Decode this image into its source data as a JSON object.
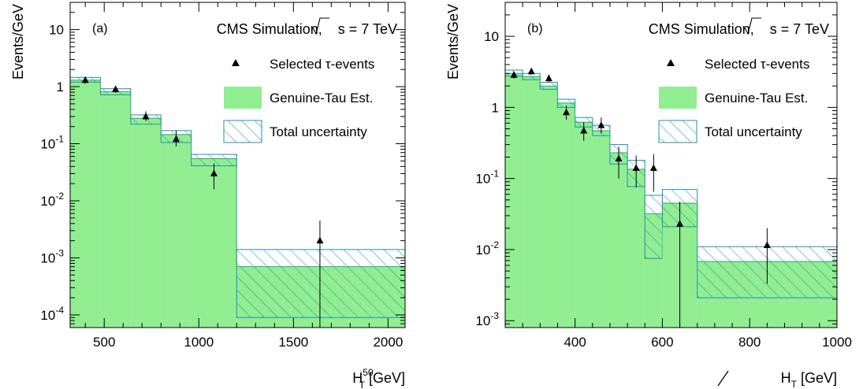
{
  "chart_data": [
    {
      "type": "histogram",
      "panel_label": "(a)",
      "header": "CMS Simulation,",
      "energy_label": "s",
      "energy_value": " = 7 TeV",
      "ylabel": "Events/GeV",
      "xlabel": "H",
      "xlabel_sup": "50",
      "xlabel_sub": "T",
      "xlabel_unit": " [GeV]",
      "xlim": [
        320,
        2090
      ],
      "ylim": [
        6e-05,
        30
      ],
      "yscale": "log",
      "xticks": [
        500,
        1000,
        1500,
        2000
      ],
      "xtick_labels": [
        "500",
        "1000",
        "1500",
        "2000"
      ],
      "yticks": [
        {
          "base": "10",
          "exp": "-4",
          "value": 0.0001
        },
        {
          "base": "10",
          "exp": "-3",
          "value": 0.001
        },
        {
          "base": "10",
          "exp": "-2",
          "value": 0.01
        },
        {
          "base": "10",
          "exp": "-1",
          "value": 0.1
        },
        {
          "base": "1",
          "exp": "",
          "value": 1
        },
        {
          "base": "10",
          "exp": "",
          "value": 10
        }
      ],
      "legend": {
        "placement": "top-right",
        "items": [
          {
            "label": "Selected τ-events",
            "kind": "marker"
          },
          {
            "label": "Genuine-Tau Est.",
            "kind": "fill"
          },
          {
            "label": "Total uncertainty",
            "kind": "hatch"
          }
        ]
      },
      "bins": [
        {
          "low": 320,
          "high": 480,
          "value": 1.3,
          "err_low": 1.2,
          "err_high": 1.45
        },
        {
          "low": 480,
          "high": 640,
          "value": 0.82,
          "err_low": 0.72,
          "err_high": 0.92
        },
        {
          "low": 640,
          "high": 800,
          "value": 0.28,
          "err_low": 0.22,
          "err_high": 0.32
        },
        {
          "low": 800,
          "high": 960,
          "value": 0.145,
          "err_low": 0.105,
          "err_high": 0.17
        },
        {
          "low": 960,
          "high": 1200,
          "value": 0.055,
          "err_low": 0.041,
          "err_high": 0.065
        },
        {
          "low": 1200,
          "high": 2090,
          "value": 0.0007,
          "err_low": 9e-05,
          "err_high": 0.0014
        }
      ],
      "points": [
        {
          "x": 400,
          "y": 1.3,
          "err_low": 1.12,
          "err_high": 1.5
        },
        {
          "x": 560,
          "y": 0.9,
          "err_low": 0.78,
          "err_high": 1.02
        },
        {
          "x": 720,
          "y": 0.3,
          "err_low": 0.25,
          "err_high": 0.37
        },
        {
          "x": 880,
          "y": 0.12,
          "err_low": 0.09,
          "err_high": 0.17
        },
        {
          "x": 1080,
          "y": 0.03,
          "err_low": 0.016,
          "err_high": 0.045
        },
        {
          "x": 1640,
          "y": 0.002,
          "err_low": 6e-05,
          "err_high": 0.0045
        }
      ]
    },
    {
      "type": "histogram",
      "panel_label": "(b)",
      "header": "CMS Simulation,",
      "energy_label": "s",
      "energy_value": " = 7 TeV",
      "ylabel": "Events/GeV",
      "xlabel": "H",
      "xlabel_sup": "",
      "xlabel_sub": "T",
      "xlabel_unit": " [GeV]",
      "xlim": [
        240,
        1000
      ],
      "ylim": [
        0.0008,
        30
      ],
      "yscale": "log",
      "xticks": [
        400,
        600,
        800,
        1000
      ],
      "xtick_labels": [
        "400",
        "600",
        "800",
        "1000"
      ],
      "yticks": [
        {
          "base": "10",
          "exp": "-3",
          "value": 0.001
        },
        {
          "base": "10",
          "exp": "-2",
          "value": 0.01
        },
        {
          "base": "10",
          "exp": "-1",
          "value": 0.1
        },
        {
          "base": "1",
          "exp": "",
          "value": 1
        },
        {
          "base": "10",
          "exp": "",
          "value": 10
        }
      ],
      "legend": {
        "placement": "top-right",
        "items": [
          {
            "label": "Selected τ-events",
            "kind": "marker"
          },
          {
            "label": "Genuine-Tau Est.",
            "kind": "fill"
          },
          {
            "label": "Total uncertainty",
            "kind": "hatch"
          }
        ]
      },
      "bins": [
        {
          "low": 240,
          "high": 280,
          "value": 3.0,
          "err_low": 2.75,
          "err_high": 3.35
        },
        {
          "low": 280,
          "high": 320,
          "value": 2.7,
          "err_low": 2.45,
          "err_high": 3.0
        },
        {
          "low": 320,
          "high": 360,
          "value": 2.0,
          "err_low": 1.8,
          "err_high": 2.25
        },
        {
          "low": 360,
          "high": 400,
          "value": 1.15,
          "err_low": 1.0,
          "err_high": 1.3
        },
        {
          "low": 400,
          "high": 440,
          "value": 0.62,
          "err_low": 0.53,
          "err_high": 0.72
        },
        {
          "low": 440,
          "high": 480,
          "value": 0.47,
          "err_low": 0.4,
          "err_high": 0.56
        },
        {
          "low": 480,
          "high": 520,
          "value": 0.23,
          "err_low": 0.16,
          "err_high": 0.3
        },
        {
          "low": 520,
          "high": 560,
          "value": 0.135,
          "err_low": 0.077,
          "err_high": 0.18
        },
        {
          "low": 560,
          "high": 600,
          "value": 0.032,
          "err_low": 0.0075,
          "err_high": 0.058
        },
        {
          "low": 600,
          "high": 680,
          "value": 0.045,
          "err_low": 0.021,
          "err_high": 0.07
        },
        {
          "low": 680,
          "high": 1000,
          "value": 0.0068,
          "err_low": 0.0021,
          "err_high": 0.011
        }
      ],
      "points": [
        {
          "x": 260,
          "y": 2.85,
          "err_low": 2.55,
          "err_high": 3.2
        },
        {
          "x": 300,
          "y": 3.2,
          "err_low": 2.9,
          "err_high": 3.55
        },
        {
          "x": 340,
          "y": 2.55,
          "err_low": 2.25,
          "err_high": 2.9
        },
        {
          "x": 380,
          "y": 0.85,
          "err_low": 0.67,
          "err_high": 1.06
        },
        {
          "x": 420,
          "y": 0.47,
          "err_low": 0.34,
          "err_high": 0.62
        },
        {
          "x": 460,
          "y": 0.56,
          "err_low": 0.43,
          "err_high": 0.72
        },
        {
          "x": 500,
          "y": 0.19,
          "err_low": 0.1,
          "err_high": 0.28
        },
        {
          "x": 540,
          "y": 0.14,
          "err_low": 0.075,
          "err_high": 0.21
        },
        {
          "x": 580,
          "y": 0.14,
          "err_low": 0.065,
          "err_high": 0.22
        },
        {
          "x": 640,
          "y": 0.023,
          "err_low": 0.0008,
          "err_high": 0.047
        },
        {
          "x": 840,
          "y": 0.0115,
          "err_low": 0.0033,
          "err_high": 0.02
        }
      ]
    }
  ],
  "colors": {
    "fill": "#90ee90",
    "hatch": "#1f8fb3",
    "marker": "#000000"
  }
}
